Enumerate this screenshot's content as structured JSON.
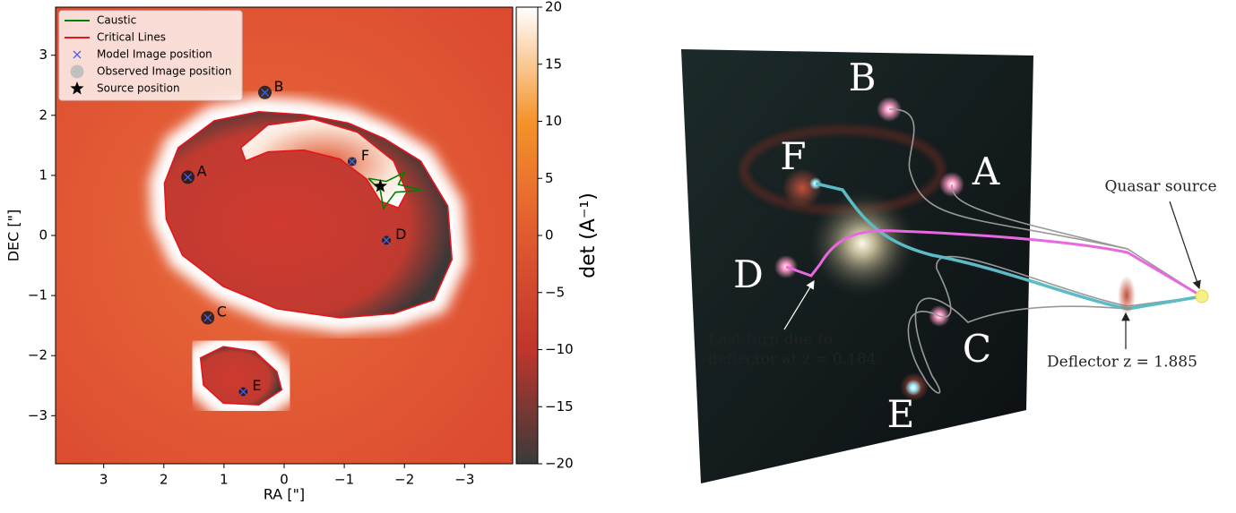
{
  "chart_data": {
    "type": "lensing-map",
    "xlabel": "RA [\"]",
    "ylabel": "DEC [\"]",
    "xlim": [
      3.8,
      -3.8
    ],
    "ylim": [
      -3.8,
      3.8
    ],
    "xticks": [
      3,
      2,
      1,
      0,
      {
        "value": -1,
        "label": "−1"
      },
      {
        "value": -2,
        "label": "−2"
      },
      {
        "value": -3,
        "label": "−3"
      }
    ],
    "yticks": [
      {
        "value": -3,
        "label": "−3"
      },
      {
        "value": -2,
        "label": "−2"
      },
      {
        "value": -1,
        "label": "−1"
      },
      0,
      1,
      2,
      3
    ],
    "colorbar": {
      "label": "det  (A⁻¹)",
      "lim": [
        -20,
        20
      ],
      "ticks": [
        {
          "value": -20,
          "label": "−20"
        },
        {
          "value": -15,
          "label": "−15"
        },
        {
          "value": -10,
          "label": "−10"
        },
        {
          "value": -5,
          "label": "−5"
        },
        0,
        5,
        10,
        15,
        20
      ],
      "colors": [
        "#3a3a3a",
        "#c0352c",
        "#e05a30",
        "#f5932a",
        "#ffffff"
      ]
    },
    "series": [
      {
        "name": "Caustic",
        "color": "#008000",
        "x": [
          -1.4,
          -1.7,
          -2.0,
          -1.9,
          -2.3,
          -1.85,
          -1.65,
          -1.6,
          -1.4
        ],
        "y": [
          0.95,
          0.9,
          1.05,
          0.85,
          0.75,
          0.72,
          0.45,
          0.75,
          0.95
        ]
      },
      {
        "name": "Critical Lines",
        "color": "#e8141c",
        "curves": [
          {
            "x": [
              1.99,
              1.76,
              1.16,
              0.42,
              -0.33,
              -1.07,
              -1.67,
              -2.27,
              -2.72,
              -2.79,
              -2.49,
              -1.82,
              -0.93,
              0.12,
              1.01,
              1.69,
              1.96
            ],
            "y": [
              0.87,
              1.46,
              1.91,
              2.06,
              2.01,
              1.87,
              1.61,
              1.24,
              0.49,
              -0.4,
              -1.07,
              -1.3,
              -1.37,
              -1.22,
              -0.85,
              -0.33,
              0.27
            ]
          },
          {
            "x": [
              0.72,
              0.27,
              -0.48,
              -1.22,
              -1.82,
              -2.04,
              -1.9,
              -1.6,
              -1.37,
              -0.93,
              -0.33,
              0.27,
              0.64
            ],
            "y": [
              1.46,
              1.84,
              1.94,
              1.72,
              1.24,
              0.72,
              0.46,
              0.57,
              0.94,
              1.27,
              1.42,
              1.39,
              1.24
            ]
          },
          {
            "x": [
              1.39,
              1.01,
              0.49,
              0.12,
              0.04,
              0.42,
              1.01,
              1.34
            ],
            "y": [
              -2.04,
              -1.85,
              -1.93,
              -2.27,
              -2.57,
              -2.82,
              -2.79,
              -2.49
            ]
          }
        ]
      },
      {
        "name": "Model Image position",
        "color": "#4a62e8",
        "marker": "x",
        "x": [
          1.6,
          0.32,
          1.27,
          -1.7,
          0.68,
          -1.13
        ],
        "y": [
          0.97,
          2.38,
          -1.37,
          -0.08,
          -2.6,
          1.23
        ]
      },
      {
        "name": "Observed Image position",
        "color": "#1a1a1a",
        "marker": "circle",
        "x": [
          1.6,
          0.32,
          1.27,
          -1.7,
          0.68,
          -1.13
        ],
        "y": [
          0.97,
          2.38,
          -1.37,
          -0.08,
          -2.6,
          1.23
        ]
      },
      {
        "name": "Source position",
        "color": "#000000",
        "marker": "star",
        "x": [
          -1.6
        ],
        "y": [
          0.82
        ]
      }
    ],
    "point_labels": [
      "A",
      "B",
      "C",
      "D",
      "E",
      "F"
    ]
  },
  "illustration": {
    "images": [
      "B",
      "A",
      "F",
      "D",
      "C",
      "E"
    ],
    "source": "Quasar source",
    "turn_note": [
      "Last turn due to",
      "deflector at z = 0.184"
    ],
    "deflector_note": "Deflector z = 1.885"
  }
}
